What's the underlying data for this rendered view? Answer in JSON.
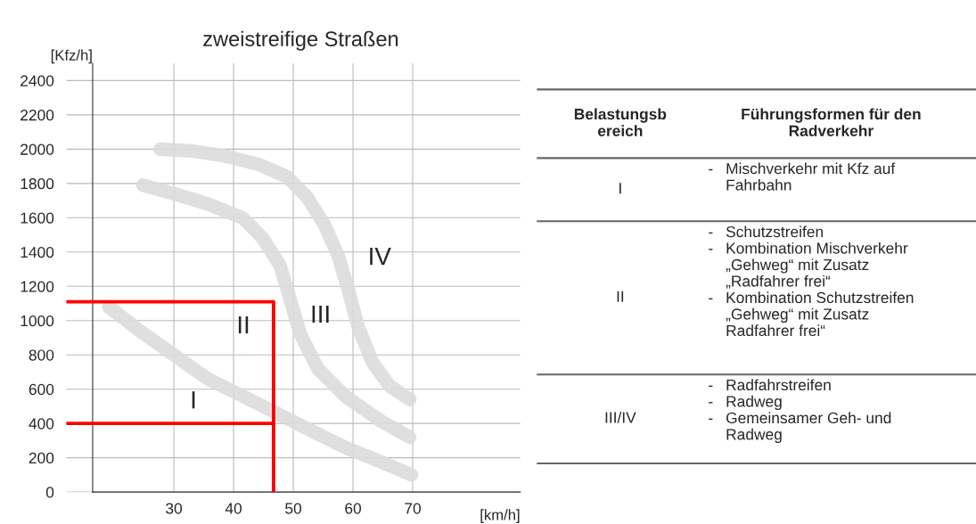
{
  "chart_data": [
    {
      "type": "line",
      "title": "zweistreifige Straßen",
      "xlabel": "[km/h]",
      "ylabel": "[Kfz/h]",
      "xlim": [
        12,
        88
      ],
      "ylim": [
        0,
        2500
      ],
      "xticks": [
        30,
        40,
        50,
        60,
        70
      ],
      "yticks": [
        0,
        200,
        400,
        600,
        800,
        1000,
        1200,
        1400,
        1600,
        1800,
        2000,
        2200,
        2400
      ],
      "grid": true,
      "series": [
        {
          "color": "#dcdcdc",
          "x": [
            19.1,
            24.3,
            30,
            35.7,
            41.5,
            47.2,
            52.9,
            58.7,
            64.4,
            69.8
          ],
          "values": [
            1080,
            940,
            800,
            660,
            560,
            460,
            360,
            260,
            180,
            100
          ]
        },
        {
          "color": "#dcdcdc",
          "x": [
            24.8,
            30,
            35.7,
            41.5,
            44.9,
            47.8,
            49.5,
            51.2,
            54.1,
            58.7,
            64.4,
            69.5
          ],
          "values": [
            1790,
            1740,
            1680,
            1600,
            1480,
            1320,
            1120,
            920,
            720,
            560,
            420,
            320
          ]
        },
        {
          "color": "#dcdcdc",
          "x": [
            27.7,
            32.9,
            38.6,
            44.3,
            48.9,
            52.3,
            55.2,
            57.5,
            59.2,
            60.9,
            63.2,
            66.1,
            69.5
          ],
          "values": [
            2000,
            1990,
            1960,
            1910,
            1840,
            1720,
            1560,
            1380,
            1180,
            960,
            760,
            620,
            540
          ]
        },
        {
          "color": "#ff0000",
          "x": [
            12,
            46.7,
            46.7
          ],
          "values": [
            1110,
            1110,
            0
          ]
        },
        {
          "color": "#ff0000",
          "x": [
            12,
            46.7
          ],
          "values": [
            400,
            400
          ]
        }
      ],
      "annotations": [
        "I",
        "II",
        "III",
        "IV"
      ]
    },
    {
      "type": "other",
      "annotations": [
        "Belastungsb\nereich",
        "Führungsformen für den\nRadverkehr",
        "I",
        "- Mischverkehr mit Kfz auf\nFahrbahn",
        "II",
        "- Schutzstreifen\n- Kombination Mischverkehr\n„Gehweg“ mit Zusatz\n„Radfahrer frei“\n- Kombination Schutzstreifen\n„Gehweg“ mit Zusatz\nRadfahrer frei“",
        "III/IV",
        "- Radfahrstreifen\n- Radweg\n- Gemeinsamer Geh- und\nRadweg"
      ]
    }
  ]
}
